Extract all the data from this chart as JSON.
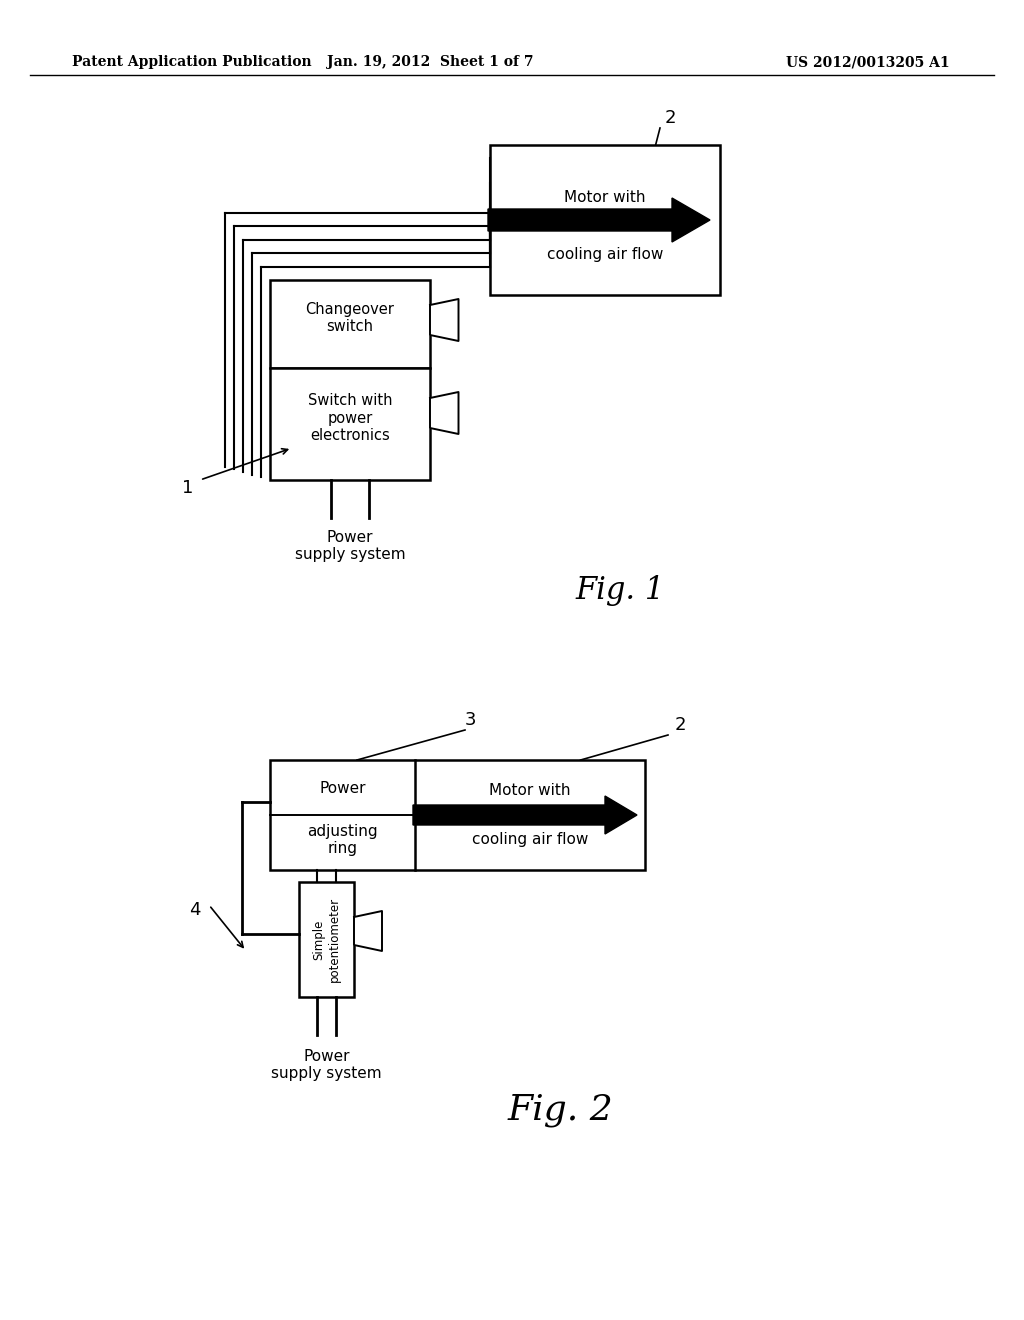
{
  "bg_color": "#ffffff",
  "header_left": "Patent Application Publication",
  "header_center": "Jan. 19, 2012  Sheet 1 of 7",
  "header_right": "US 2012/0013205 A1"
}
